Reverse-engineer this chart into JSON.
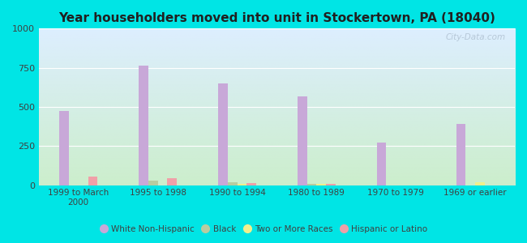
{
  "title": "Year householders moved into unit in Stockertown, PA (18040)",
  "categories": [
    "1999 to March\n2000",
    "1995 to 1998",
    "1990 to 1994",
    "1980 to 1989",
    "1970 to 1979",
    "1969 or earlier"
  ],
  "series": {
    "White Non-Hispanic": [
      473,
      762,
      648,
      567,
      271,
      393
    ],
    "Black": [
      0,
      30,
      17,
      7,
      0,
      0
    ],
    "Two or More Races": [
      0,
      0,
      10,
      7,
      0,
      20
    ],
    "Hispanic or Latino": [
      55,
      45,
      15,
      10,
      0,
      0
    ]
  },
  "colors": {
    "White Non-Hispanic": "#c8a8d8",
    "Black": "#b8cca0",
    "Two or More Races": "#f0f08c",
    "Hispanic or Latino": "#f0a0a8"
  },
  "ylim": [
    0,
    1000
  ],
  "yticks": [
    0,
    250,
    500,
    750,
    1000
  ],
  "background_color": "#00e5e5",
  "plot_bg_top_right": "#ddeeff",
  "plot_bg_bottom_left": "#cceecc",
  "watermark": "City-Data.com",
  "bar_width": 0.12,
  "title_fontsize": 11,
  "tick_fontsize": 7.5
}
